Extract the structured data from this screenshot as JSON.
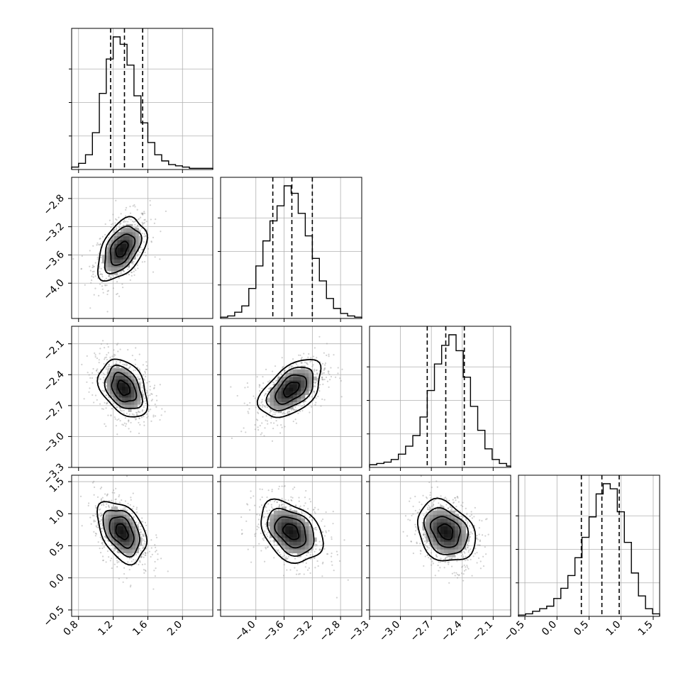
{
  "chart_data": {
    "type": "corner",
    "parameters": [
      {
        "range": [
          0.72,
          2.35
        ],
        "ticks": [
          0.8,
          1.2,
          1.6,
          2.0
        ],
        "tick_labels": [
          "0.8",
          "1.2",
          "1.6",
          "2.0"
        ],
        "quantiles": [
          1.17,
          1.33,
          1.54
        ]
      },
      {
        "range": [
          -4.5,
          -2.5
        ],
        "ticks": [
          -4.0,
          -3.6,
          -3.2,
          -2.8
        ],
        "tick_labels": [
          "−4.0",
          "−3.6",
          "−3.2",
          "−2.8"
        ],
        "quantiles": [
          -3.76,
          -3.49,
          -3.2
        ]
      },
      {
        "range": [
          -3.3,
          -1.93
        ],
        "ticks": [
          -3.3,
          -3.0,
          -2.7,
          -2.4,
          -2.1
        ],
        "tick_labels": [
          "−3.3",
          "−3.0",
          "−2.7",
          "−2.4",
          "−2.1"
        ],
        "quantiles": [
          -2.74,
          -2.56,
          -2.38
        ]
      },
      {
        "range": [
          -0.6,
          1.6
        ],
        "ticks": [
          -0.5,
          0.0,
          0.5,
          1.0,
          1.5
        ],
        "tick_labels": [
          "−0.5",
          "0.0",
          "0.5",
          "1.0",
          "1.5"
        ],
        "quantiles": [
          0.38,
          0.7,
          0.97
        ]
      }
    ],
    "marginals": [
      {
        "edges": [
          0.72,
          0.8,
          0.88,
          0.96,
          1.04,
          1.12,
          1.2,
          1.28,
          1.36,
          1.44,
          1.52,
          1.6,
          1.68,
          1.76,
          1.84,
          1.92,
          2.0,
          2.08,
          2.16,
          2.24,
          2.35
        ],
        "counts": [
          2,
          5,
          12,
          30,
          62,
          90,
          108,
          102,
          85,
          60,
          38,
          22,
          12,
          7,
          4,
          3,
          2,
          1,
          1,
          1
        ]
      },
      {
        "edges": [
          -4.5,
          -4.4,
          -4.3,
          -4.2,
          -4.1,
          -4.0,
          -3.9,
          -3.8,
          -3.7,
          -3.6,
          -3.5,
          -3.4,
          -3.3,
          -3.2,
          -3.1,
          -3.0,
          -2.9,
          -2.8,
          -2.7,
          -2.6,
          -2.5
        ],
        "counts": [
          1,
          2,
          5,
          10,
          24,
          42,
          62,
          78,
          90,
          106,
          100,
          84,
          66,
          48,
          30,
          16,
          8,
          4,
          2,
          1
        ]
      },
      {
        "edges": [
          -3.3,
          -3.23,
          -3.16,
          -3.09,
          -3.02,
          -2.95,
          -2.88,
          -2.81,
          -2.74,
          -2.67,
          -2.6,
          -2.53,
          -2.46,
          -2.39,
          -2.32,
          -2.25,
          -2.18,
          -2.11,
          -2.04,
          -1.97,
          -1.93
        ],
        "counts": [
          2,
          3,
          4,
          6,
          10,
          16,
          24,
          38,
          58,
          78,
          92,
          100,
          88,
          68,
          46,
          28,
          14,
          6,
          3,
          1
        ]
      },
      {
        "edges": [
          -0.6,
          -0.49,
          -0.38,
          -0.27,
          -0.16,
          -0.05,
          0.06,
          0.17,
          0.28,
          0.39,
          0.5,
          0.61,
          0.72,
          0.83,
          0.94,
          1.05,
          1.16,
          1.27,
          1.38,
          1.49,
          1.6
        ],
        "counts": [
          1,
          2,
          4,
          6,
          8,
          14,
          22,
          32,
          46,
          62,
          78,
          96,
          104,
          100,
          82,
          58,
          34,
          16,
          6,
          2
        ]
      }
    ],
    "joint": [
      {
        "x": 0,
        "y": 1,
        "cx": 1.3,
        "cy": -3.52,
        "sx": 0.14,
        "sy": 0.22,
        "rho": 0.45
      },
      {
        "x": 0,
        "y": 2,
        "cx": 1.32,
        "cy": -2.53,
        "sx": 0.14,
        "sy": 0.14,
        "rho": -0.35
      },
      {
        "x": 1,
        "y": 2,
        "cx": -3.5,
        "cy": -2.54,
        "sx": 0.22,
        "sy": 0.14,
        "rho": 0.5
      },
      {
        "x": 0,
        "y": 3,
        "cx": 1.3,
        "cy": 0.72,
        "sx": 0.14,
        "sy": 0.24,
        "rho": -0.4
      },
      {
        "x": 1,
        "y": 3,
        "cx": -3.5,
        "cy": 0.72,
        "sx": 0.22,
        "sy": 0.24,
        "rho": -0.35
      },
      {
        "x": 2,
        "y": 3,
        "cx": -2.56,
        "cy": 0.72,
        "sx": 0.14,
        "sy": 0.24,
        "rho": -0.25
      }
    ],
    "contour_levels": [
      0.5,
      1.0,
      1.5,
      2.0
    ],
    "grid": true
  }
}
